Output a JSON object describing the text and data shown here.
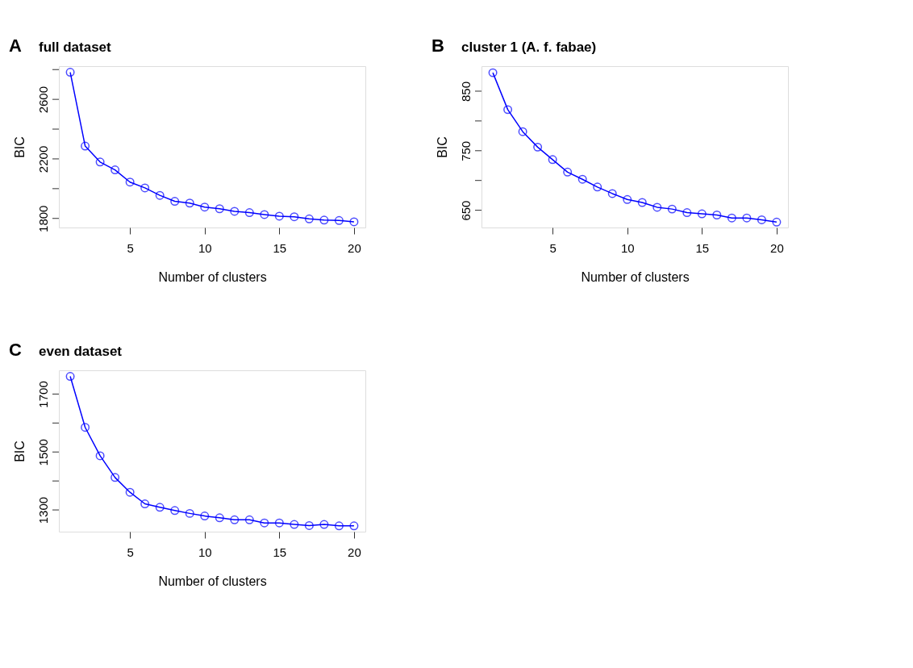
{
  "chart_data": [
    {
      "type": "line",
      "title": "full dataset",
      "annotations": [
        "A"
      ],
      "xlabel": "Number of clusters",
      "ylabel": "BIC",
      "marker": "circle",
      "line_style": "solid",
      "grid": false,
      "x": [
        1,
        2,
        3,
        4,
        5,
        6,
        7,
        8,
        9,
        10,
        11,
        12,
        13,
        14,
        15,
        16,
        17,
        18,
        19,
        20
      ],
      "series": [
        {
          "color": "#0000ff",
          "values": [
            2782,
            2286,
            2179,
            2126,
            2044,
            2005,
            1955,
            1915,
            1903,
            1876,
            1865,
            1848,
            1839,
            1826,
            1815,
            1811,
            1797,
            1789,
            1786,
            1777
          ]
        }
      ],
      "xlim": [
        0.24,
        20.76
      ],
      "xticks": [
        5,
        10,
        15,
        20
      ],
      "ylim": [
        1739,
        2823
      ],
      "yticks": [
        1800,
        {
          "value": 2000,
          "label": null
        },
        2200,
        {
          "value": 2400,
          "label": null
        },
        2600,
        {
          "value": 2800,
          "label": null
        }
      ]
    },
    {
      "type": "line",
      "title": "cluster 1  (A. f. fabae)",
      "annotations": [
        "B"
      ],
      "xlabel": "Number of clusters",
      "ylabel": "BIC",
      "marker": "circle",
      "line_style": "solid",
      "grid": false,
      "x": [
        1,
        2,
        3,
        4,
        5,
        6,
        7,
        8,
        9,
        10,
        11,
        12,
        13,
        14,
        15,
        16,
        17,
        18,
        19,
        20
      ],
      "series": [
        {
          "color": "#0000ff",
          "values": [
            881,
            819,
            782,
            756,
            735,
            714,
            702,
            689,
            678,
            668,
            663,
            655,
            652,
            646,
            644,
            642,
            637,
            637,
            634,
            630
          ]
        }
      ],
      "xlim": [
        0.24,
        20.76
      ],
      "xticks": [
        5,
        10,
        15,
        20
      ],
      "ylim": [
        621,
        892
      ],
      "yticks": [
        650,
        {
          "value": 700,
          "label": null
        },
        750,
        {
          "value": 800,
          "label": null
        },
        850
      ]
    },
    {
      "type": "line",
      "title": "even dataset",
      "annotations": [
        "C"
      ],
      "xlabel": "Number of clusters",
      "ylabel": "BIC",
      "marker": "circle",
      "line_style": "solid",
      "grid": false,
      "x": [
        1,
        2,
        3,
        4,
        5,
        6,
        7,
        8,
        9,
        10,
        11,
        12,
        13,
        14,
        15,
        16,
        17,
        18,
        19,
        20
      ],
      "series": [
        {
          "color": "#0000ff",
          "values": [
            1761,
            1585,
            1487,
            1412,
            1361,
            1321,
            1309,
            1298,
            1288,
            1279,
            1273,
            1266,
            1266,
            1255,
            1255,
            1250,
            1246,
            1250,
            1245,
            1245
          ]
        }
      ],
      "xlim": [
        0.24,
        20.76
      ],
      "xticks": [
        5,
        10,
        15,
        20
      ],
      "ylim": [
        1225,
        1782
      ],
      "yticks": [
        1300,
        {
          "value": 1400,
          "label": null
        },
        1500,
        {
          "value": 1600,
          "label": null
        },
        1700
      ]
    }
  ]
}
